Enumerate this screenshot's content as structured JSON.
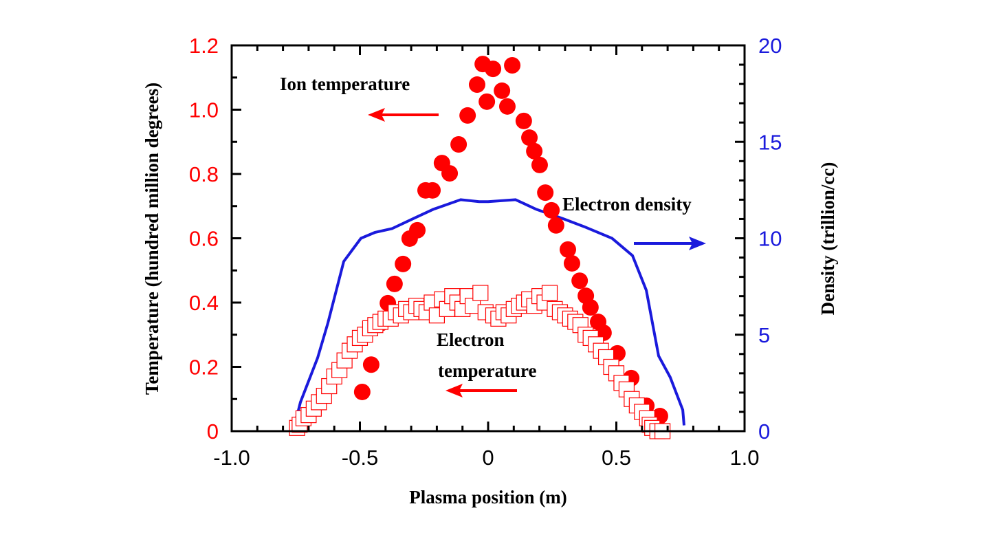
{
  "chart_data": {
    "type": "scatter",
    "xlabel": "Plasma position (m)",
    "ylabel": "Temperature (hundred million degrees)",
    "y2label": "Density (trillion/cc)",
    "xlim": [
      -1.0,
      1.0
    ],
    "ylim": [
      0,
      1.2
    ],
    "y2lim": [
      0,
      20
    ],
    "xticks": [
      "-1.0",
      "-0.5",
      "0",
      "0.5",
      "1.0"
    ],
    "yticks": [
      "0",
      "0.2",
      "0.4",
      "0.6",
      "0.8",
      "1.0",
      "1.2"
    ],
    "y2ticks": [
      "0",
      "5",
      "10",
      "15",
      "20"
    ],
    "grid": false,
    "colors": {
      "ion": "#ff0000",
      "electron_temp": "#ff0000",
      "density": "#1a1adc"
    },
    "annotations": [
      {
        "text": "Ion temperature",
        "arrow": "left"
      },
      {
        "text": "Electron density",
        "arrow": "right"
      },
      {
        "text": "Electron",
        "arrow": "none"
      },
      {
        "text": "temperature",
        "arrow": "left"
      }
    ],
    "series": [
      {
        "name": "Ion temperature",
        "marker": "filled-circle",
        "axis": "left",
        "points": [
          [
            -0.021,
            1.142
          ],
          [
            0.019,
            1.127
          ],
          [
            0.094,
            1.138
          ],
          [
            -0.043,
            1.078
          ],
          [
            0.054,
            1.059
          ],
          [
            -0.005,
            1.025
          ],
          [
            0.075,
            1.01
          ],
          [
            -0.08,
            0.982
          ],
          [
            0.139,
            0.965
          ],
          [
            0.161,
            0.913
          ],
          [
            -0.115,
            0.892
          ],
          [
            0.18,
            0.871
          ],
          [
            0.201,
            0.828
          ],
          [
            -0.18,
            0.834
          ],
          [
            -0.15,
            0.802
          ],
          [
            -0.244,
            0.749
          ],
          [
            -0.217,
            0.749
          ],
          [
            0.223,
            0.742
          ],
          [
            0.247,
            0.687
          ],
          [
            0.265,
            0.64
          ],
          [
            -0.276,
            0.625
          ],
          [
            -0.306,
            0.599
          ],
          [
            0.311,
            0.565
          ],
          [
            0.327,
            0.522
          ],
          [
            -0.332,
            0.52
          ],
          [
            -0.365,
            0.458
          ],
          [
            0.357,
            0.468
          ],
          [
            -0.391,
            0.398
          ],
          [
            0.381,
            0.421
          ],
          [
            0.399,
            0.385
          ],
          [
            -0.418,
            0.336
          ],
          [
            0.429,
            0.34
          ],
          [
            0.45,
            0.306
          ],
          [
            -0.456,
            0.207
          ],
          [
            0.504,
            0.242
          ],
          [
            -0.491,
            0.122
          ],
          [
            0.558,
            0.165
          ],
          [
            0.617,
            0.079
          ],
          [
            0.67,
            0.047
          ]
        ]
      },
      {
        "name": "Electron temperature",
        "marker": "open-square",
        "axis": "left",
        "points": [
          [
            -0.745,
            0.01
          ],
          [
            -0.735,
            0.02
          ],
          [
            -0.72,
            0.04
          ],
          [
            -0.7,
            0.05
          ],
          [
            -0.68,
            0.07
          ],
          [
            -0.66,
            0.09
          ],
          [
            -0.64,
            0.11
          ],
          [
            -0.62,
            0.14
          ],
          [
            -0.6,
            0.17
          ],
          [
            -0.58,
            0.19
          ],
          [
            -0.56,
            0.22
          ],
          [
            -0.54,
            0.25
          ],
          [
            -0.52,
            0.27
          ],
          [
            -0.5,
            0.29
          ],
          [
            -0.48,
            0.3
          ],
          [
            -0.46,
            0.32
          ],
          [
            -0.44,
            0.33
          ],
          [
            -0.42,
            0.34
          ],
          [
            -0.4,
            0.35
          ],
          [
            -0.38,
            0.35
          ],
          [
            -0.36,
            0.37
          ],
          [
            -0.34,
            0.36
          ],
          [
            -0.32,
            0.38
          ],
          [
            -0.3,
            0.37
          ],
          [
            -0.28,
            0.39
          ],
          [
            -0.26,
            0.38
          ],
          [
            -0.24,
            0.37
          ],
          [
            -0.22,
            0.4
          ],
          [
            -0.2,
            0.36
          ],
          [
            -0.18,
            0.41
          ],
          [
            -0.16,
            0.38
          ],
          [
            -0.14,
            0.42
          ],
          [
            -0.12,
            0.4
          ],
          [
            -0.1,
            0.38
          ],
          [
            -0.08,
            0.42
          ],
          [
            -0.06,
            0.39
          ],
          [
            -0.03,
            0.43
          ],
          [
            -0.01,
            0.37
          ],
          [
            0.02,
            0.36
          ],
          [
            0.04,
            0.35
          ],
          [
            0.06,
            0.37
          ],
          [
            0.08,
            0.36
          ],
          [
            0.1,
            0.38
          ],
          [
            0.12,
            0.39
          ],
          [
            0.14,
            0.4
          ],
          [
            0.16,
            0.41
          ],
          [
            0.18,
            0.39
          ],
          [
            0.2,
            0.42
          ],
          [
            0.22,
            0.4
          ],
          [
            0.24,
            0.43
          ],
          [
            0.26,
            0.38
          ],
          [
            0.28,
            0.37
          ],
          [
            0.3,
            0.36
          ],
          [
            0.32,
            0.35
          ],
          [
            0.34,
            0.34
          ],
          [
            0.36,
            0.33
          ],
          [
            0.38,
            0.3
          ],
          [
            0.4,
            0.29
          ],
          [
            0.42,
            0.27
          ],
          [
            0.44,
            0.25
          ],
          [
            0.46,
            0.23
          ],
          [
            0.48,
            0.2
          ],
          [
            0.5,
            0.18
          ],
          [
            0.52,
            0.15
          ],
          [
            0.54,
            0.13
          ],
          [
            0.56,
            0.1
          ],
          [
            0.58,
            0.08
          ],
          [
            0.6,
            0.06
          ],
          [
            0.62,
            0.04
          ],
          [
            0.63,
            0.02
          ],
          [
            0.64,
            0.01
          ],
          [
            0.66,
            0.0
          ],
          [
            0.68,
            0.0
          ]
        ]
      },
      {
        "name": "Electron density",
        "marker": "line",
        "axis": "right",
        "points": [
          [
            -0.751,
            0.5
          ],
          [
            -0.732,
            1.5
          ],
          [
            -0.665,
            3.8
          ],
          [
            -0.625,
            5.6
          ],
          [
            -0.563,
            8.8
          ],
          [
            -0.496,
            10.0
          ],
          [
            -0.442,
            10.3
          ],
          [
            -0.375,
            10.5
          ],
          [
            -0.295,
            11.0
          ],
          [
            -0.214,
            11.5
          ],
          [
            -0.107,
            12.0
          ],
          [
            -0.035,
            11.9
          ],
          [
            0.0,
            11.9
          ],
          [
            0.107,
            12.0
          ],
          [
            0.188,
            11.5
          ],
          [
            0.295,
            11.0
          ],
          [
            0.375,
            10.6
          ],
          [
            0.483,
            10.0
          ],
          [
            0.563,
            9.1
          ],
          [
            0.617,
            7.3
          ],
          [
            0.665,
            3.9
          ],
          [
            0.71,
            2.8
          ],
          [
            0.759,
            1.1
          ],
          [
            0.764,
            0.3
          ]
        ]
      }
    ]
  }
}
